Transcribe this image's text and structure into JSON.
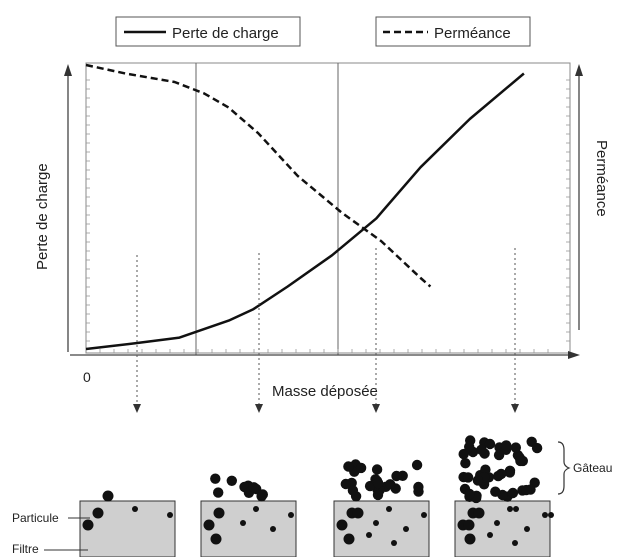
{
  "legend": {
    "solid_label": "Perte de charge",
    "dashed_label": "Perméance"
  },
  "chart_data": {
    "type": "line",
    "title": "",
    "xlabel": "Masse déposée",
    "ylabel_left": "Perte de charge",
    "ylabel_right": "Perméance",
    "origin_label": "0",
    "xlim": [
      0,
      1
    ],
    "ylim": [
      0,
      1
    ],
    "grid": false,
    "legend_position": "top",
    "series": [
      {
        "name": "Perte de charge",
        "style": "solid",
        "x": [
          0.0,
          0.1,
          0.19,
          0.24,
          0.29,
          0.34,
          0.41,
          0.5,
          0.59,
          0.68,
          0.78,
          0.89
        ],
        "y": [
          0.0,
          0.02,
          0.04,
          0.07,
          0.1,
          0.14,
          0.22,
          0.33,
          0.46,
          0.64,
          0.81,
          0.97
        ]
      },
      {
        "name": "Perméance",
        "style": "dashed",
        "x": [
          0.0,
          0.08,
          0.18,
          0.24,
          0.29,
          0.35,
          0.43,
          0.52,
          0.6,
          0.68,
          0.7
        ],
        "y": [
          1.0,
          0.97,
          0.94,
          0.9,
          0.85,
          0.76,
          0.61,
          0.48,
          0.38,
          0.25,
          0.22
        ]
      }
    ]
  },
  "filters": {
    "count": 4,
    "particle_label": "Particule",
    "filter_label": "Filtre",
    "cake_label": "Gâteau"
  },
  "colors": {
    "line": "#111111",
    "axis": "#444444",
    "filter_fill": "#cfcfcf",
    "particle": "#111111"
  }
}
